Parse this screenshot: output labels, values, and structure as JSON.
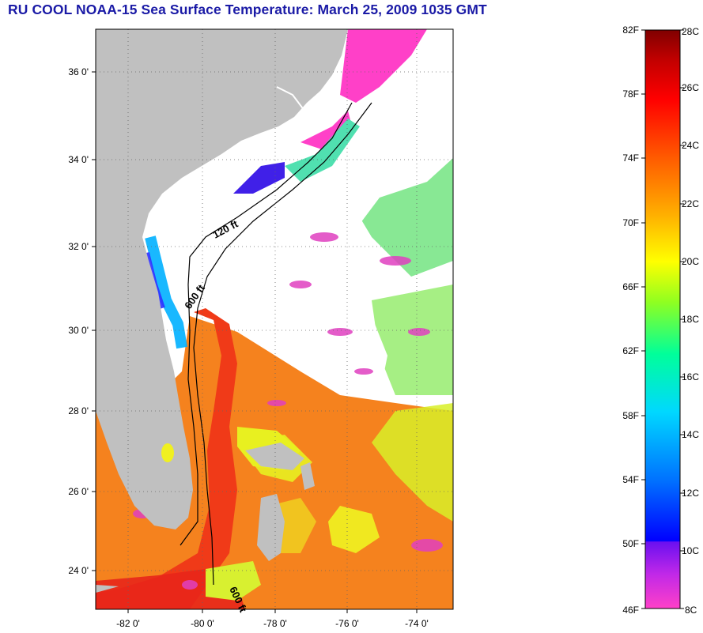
{
  "title": "RU COOL  NOAA-15  Sea Surface Temperature:  March 25, 2009 1035 GMT",
  "map": {
    "latitude_labels": [
      "36 0'",
      "34 0'",
      "32 0'",
      "30 0'",
      "28 0'",
      "26 0'",
      "24 0'"
    ],
    "longitude_labels": [
      "-82 0'",
      "-80 0'",
      "-78 0'",
      "-76 0'",
      "-74 0'"
    ],
    "contour_labels": [
      "120 ft",
      "600 ft",
      "600 ft"
    ],
    "colors": {
      "land": "#c0c0c0",
      "cloud": "#ffffff",
      "warm_water": "#f5821e",
      "gulf_stream": "#f03a18"
    }
  },
  "colorbar": {
    "fahrenheit_labels": [
      "82F",
      "78F",
      "74F",
      "70F",
      "66F",
      "62F",
      "58F",
      "54F",
      "50F",
      "46F"
    ],
    "celsius_labels": [
      "28C",
      "26C",
      "24C",
      "22C",
      "20C",
      "18C",
      "16C",
      "14C",
      "12C",
      "10C",
      "8C"
    ],
    "colors": [
      "#ff40c8",
      "#a020f0",
      "#0000ff",
      "#0078ff",
      "#00e0ff",
      "#00ff9a",
      "#90ff20",
      "#ffff00",
      "#ffb000",
      "#ff5a00",
      "#ff0000",
      "#d80000",
      "#800000"
    ]
  }
}
